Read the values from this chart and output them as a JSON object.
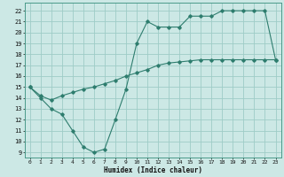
{
  "title": "",
  "xlabel": "Humidex (Indice chaleur)",
  "bg_color": "#cce8e5",
  "grid_color": "#9eccc7",
  "line_color": "#2e7d6e",
  "xlim": [
    -0.5,
    23.5
  ],
  "ylim": [
    8.5,
    22.7
  ],
  "xticks": [
    0,
    1,
    2,
    3,
    4,
    5,
    6,
    7,
    8,
    9,
    10,
    11,
    12,
    13,
    14,
    15,
    16,
    17,
    18,
    19,
    20,
    21,
    22,
    23
  ],
  "yticks": [
    9,
    10,
    11,
    12,
    13,
    14,
    15,
    16,
    17,
    18,
    19,
    20,
    21,
    22
  ],
  "curve1_x": [
    0,
    1,
    2,
    3,
    4,
    5,
    6,
    7,
    8,
    9,
    10,
    11,
    12,
    13,
    14,
    15,
    16,
    17,
    18,
    19,
    20,
    21,
    22,
    23
  ],
  "curve1_y": [
    15,
    14,
    13,
    12.5,
    11,
    9.5,
    9,
    9.3,
    12,
    14.8,
    19,
    21,
    20.5,
    20.5,
    20.5,
    21.5,
    21.5,
    21.5,
    22,
    22,
    22,
    22,
    22,
    17.5
  ],
  "curve2_x": [
    0,
    1,
    2,
    3,
    4,
    5,
    6,
    7,
    8,
    9,
    10,
    11,
    12,
    13,
    14,
    15,
    16,
    17,
    18,
    19,
    20,
    21,
    22,
    23
  ],
  "curve2_y": [
    15,
    14.2,
    13.8,
    14.2,
    14.5,
    14.8,
    15.0,
    15.3,
    15.6,
    16.0,
    16.3,
    16.6,
    17.0,
    17.2,
    17.3,
    17.4,
    17.5,
    17.5,
    17.5,
    17.5,
    17.5,
    17.5,
    17.5,
    17.5
  ]
}
